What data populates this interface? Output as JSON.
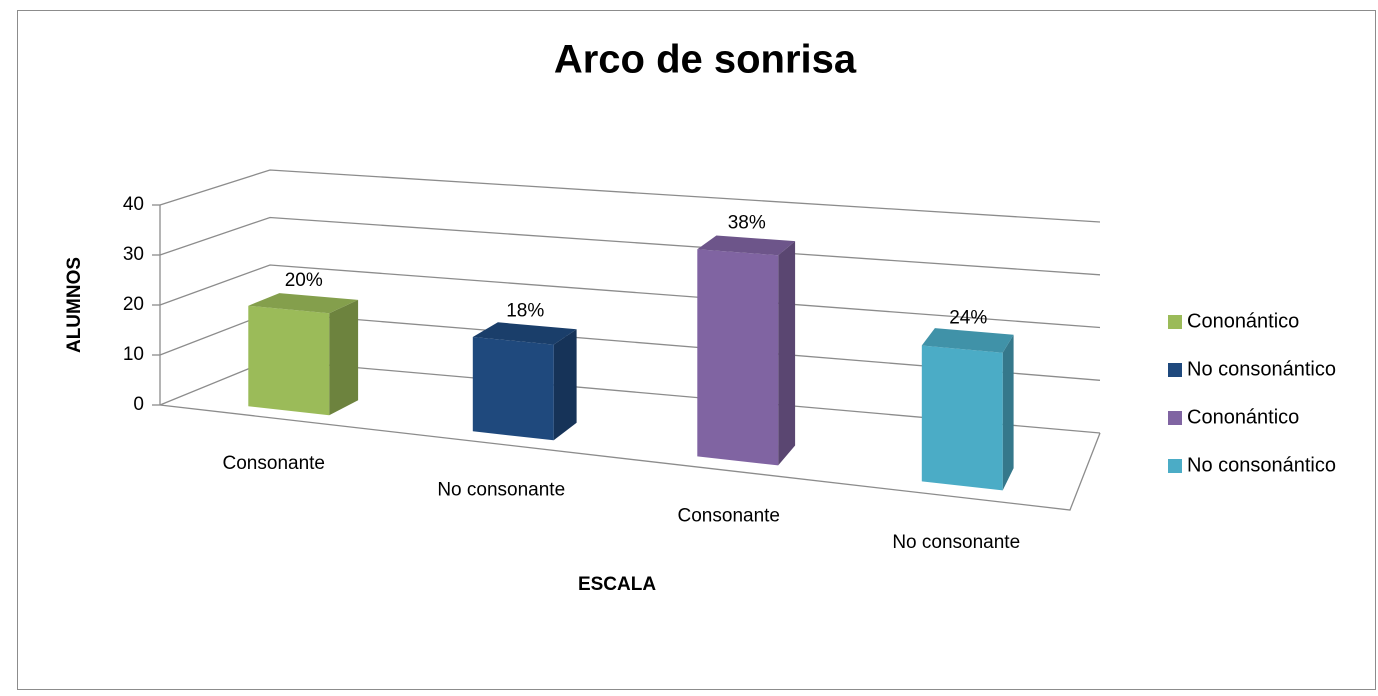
{
  "chart_data": {
    "type": "bar3d",
    "title": "Arco de sonrisa",
    "x_label": "ESCALA",
    "y_label": "ALUMNOS",
    "categories": [
      "Consonante",
      "No consonante",
      "Consonante",
      "No consonante"
    ],
    "series": [
      {
        "name": "Cononántico",
        "color": "#9bbb59",
        "values": [
          20,
          null,
          null,
          null
        ],
        "value_labels": [
          "20%",
          null,
          null,
          null
        ]
      },
      {
        "name": "No consonántico",
        "color": "#1f497d",
        "values": [
          null,
          18,
          null,
          null
        ],
        "value_labels": [
          null,
          "18%",
          null,
          null
        ]
      },
      {
        "name": "Cononántico",
        "color": "#8064a2",
        "values": [
          null,
          null,
          38,
          null
        ],
        "value_labels": [
          null,
          null,
          "38%",
          null
        ]
      },
      {
        "name": "No consonántico",
        "color": "#4bacc6",
        "values": [
          null,
          null,
          null,
          24
        ],
        "value_labels": [
          null,
          null,
          null,
          "24%"
        ]
      }
    ],
    "ylim": [
      0,
      40
    ],
    "yticks": [
      0,
      10,
      20,
      30,
      40
    ],
    "grid": true,
    "legend": "right"
  }
}
